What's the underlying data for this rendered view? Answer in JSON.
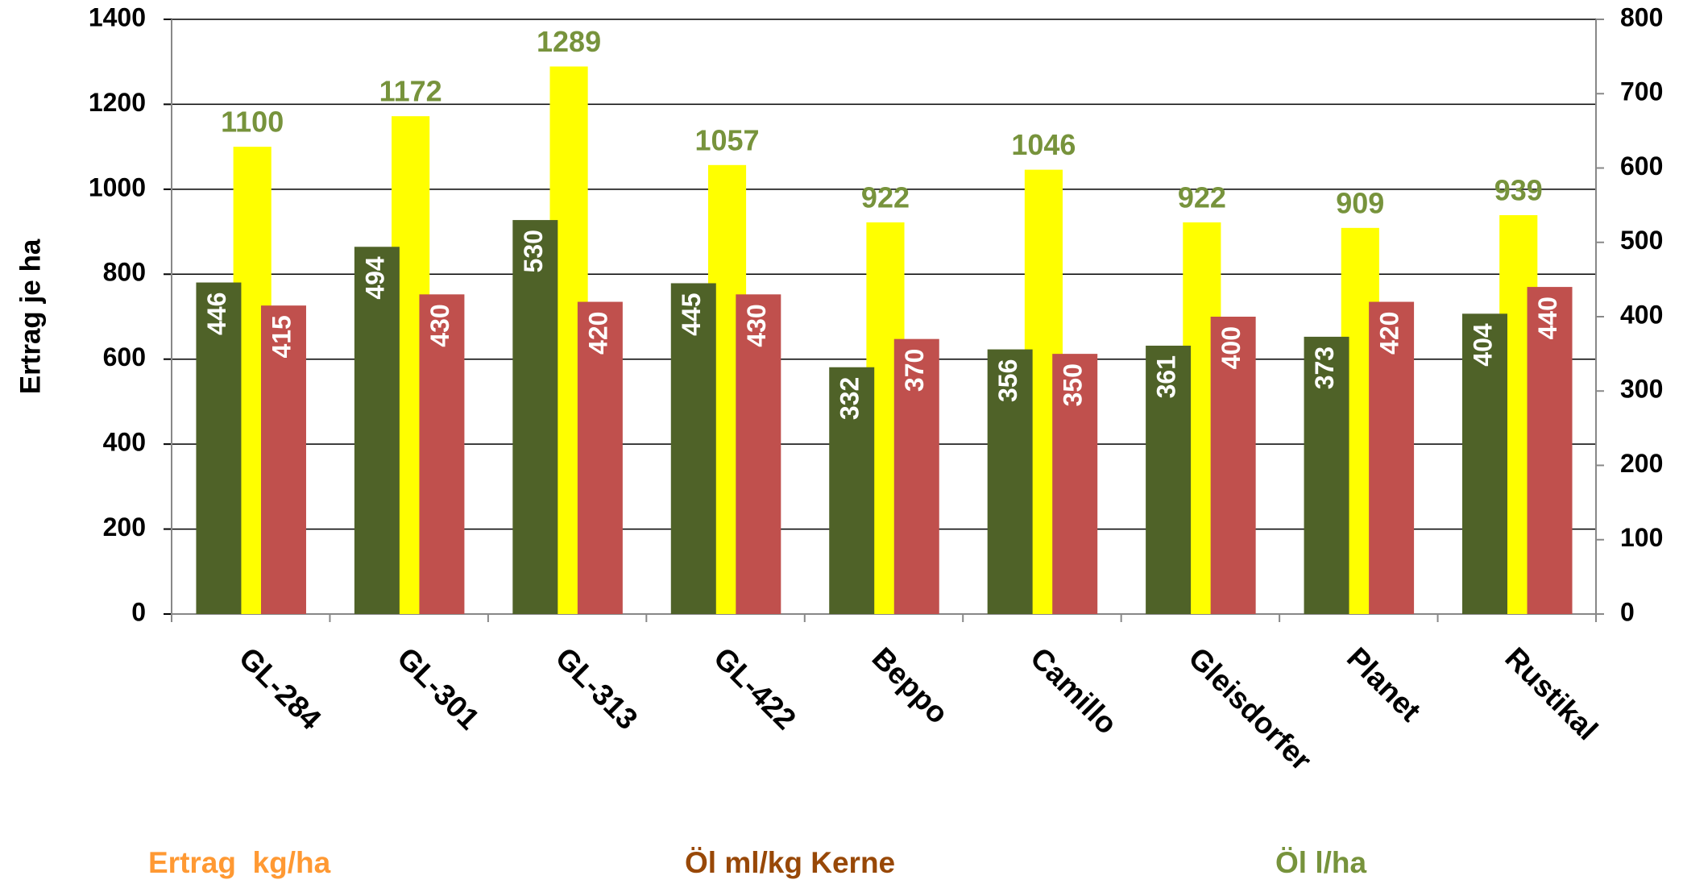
{
  "chart_data": {
    "type": "bar",
    "y_axis_label": "Ertrag je ha",
    "categories": [
      "GL-284",
      "GL-301",
      "GL-313",
      "GL-422",
      "Beppo",
      "Camillo",
      "Gleisdorfer",
      "Planet",
      "Rustikal"
    ],
    "series": [
      {
        "name": "Ertrag  kg/ha",
        "color": "#ffff00",
        "label_color": "#ff9933",
        "values": [
          1100,
          1172,
          1289,
          1057,
          922,
          1046,
          922,
          909,
          939
        ]
      },
      {
        "name": "Öl ml/kg Kerne",
        "color": "#c0504d",
        "label_color": "#984807",
        "axis": "y2",
        "values": [
          415,
          430,
          420,
          430,
          370,
          350,
          400,
          420,
          440
        ]
      },
      {
        "name": "Öl l/ha",
        "color": "#4f6228",
        "label_color": "#77933c",
        "axis": "y2",
        "values": [
          446,
          494,
          530,
          445,
          332,
          356,
          361,
          373,
          404
        ]
      }
    ],
    "ylim": [
      0,
      1400
    ],
    "yticks": [
      0,
      200,
      400,
      600,
      800,
      1000,
      1200,
      1400
    ],
    "y2lim": [
      0,
      800
    ],
    "y2ticks": [
      0,
      100,
      200,
      300,
      400,
      500,
      600,
      700,
      800
    ],
    "grid": true
  }
}
